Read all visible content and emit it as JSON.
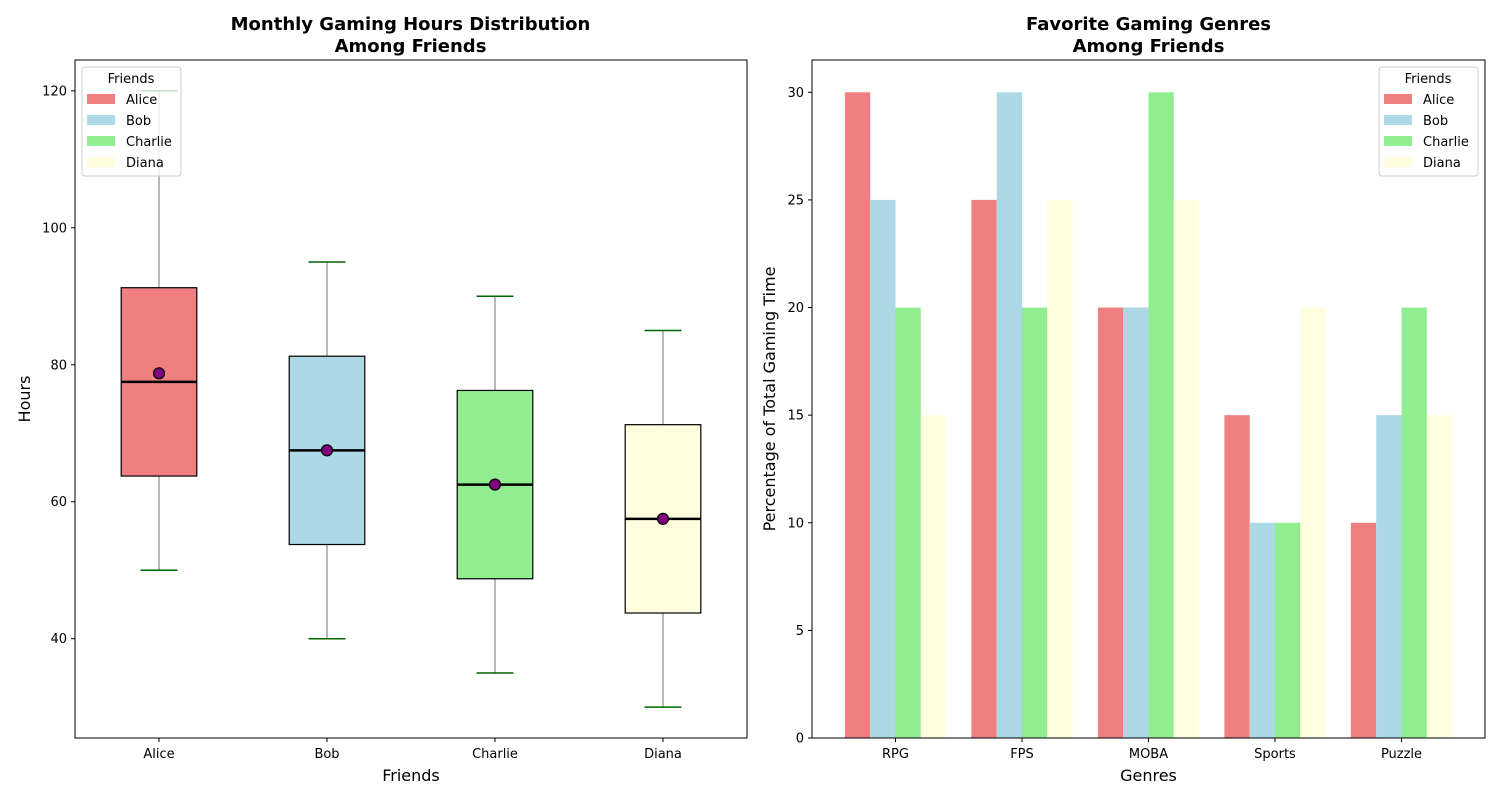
{
  "colors": {
    "Alice": "#f08080",
    "Bob": "#add8e6",
    "Charlie": "#90ee90",
    "Diana": "#ffffe0",
    "whisker": "#a0a0a0",
    "cap": "#006400",
    "median": "#000000",
    "mean_marker": "#800080"
  },
  "chart_data": [
    {
      "type": "box",
      "title_line1": "Monthly Gaming Hours Distribution",
      "title_line2": "Among Friends",
      "xlabel": "Friends",
      "ylabel": "Hours",
      "ylim": [
        25.5,
        124.5
      ],
      "yticks": [
        40,
        60,
        80,
        100,
        120
      ],
      "grid": false,
      "legend_title": "Friends",
      "legend_position": "top-left",
      "categories": [
        "Alice",
        "Bob",
        "Charlie",
        "Diana"
      ],
      "boxes": [
        {
          "name": "Alice",
          "whisker_low": 50,
          "q1": 63.75,
          "median": 77.5,
          "q3": 91.25,
          "whisker_high": 120,
          "mean": 78.75
        },
        {
          "name": "Bob",
          "whisker_low": 40,
          "q1": 53.75,
          "median": 67.5,
          "q3": 81.25,
          "whisker_high": 95,
          "mean": 67.5
        },
        {
          "name": "Charlie",
          "whisker_low": 35,
          "q1": 48.75,
          "median": 62.5,
          "q3": 76.25,
          "whisker_high": 90,
          "mean": 62.5
        },
        {
          "name": "Diana",
          "whisker_low": 30,
          "q1": 43.75,
          "median": 57.5,
          "q3": 71.25,
          "whisker_high": 85,
          "mean": 57.5
        }
      ]
    },
    {
      "type": "bar",
      "title_line1": "Favorite Gaming Genres",
      "title_line2": "Among Friends",
      "xlabel": "Genres",
      "ylabel": "Percentage of Total Gaming Time",
      "ylim": [
        0,
        31.5
      ],
      "yticks": [
        0,
        5,
        10,
        15,
        20,
        25,
        30
      ],
      "grid": false,
      "legend_title": "Friends",
      "legend_position": "top-right",
      "categories": [
        "RPG",
        "FPS",
        "MOBA",
        "Sports",
        "Puzzle"
      ],
      "series": [
        {
          "name": "Alice",
          "values": [
            30,
            25,
            20,
            15,
            10
          ]
        },
        {
          "name": "Bob",
          "values": [
            25,
            30,
            20,
            10,
            15
          ]
        },
        {
          "name": "Charlie",
          "values": [
            20,
            20,
            30,
            10,
            20
          ]
        },
        {
          "name": "Diana",
          "values": [
            15,
            25,
            25,
            20,
            15
          ]
        }
      ]
    }
  ]
}
